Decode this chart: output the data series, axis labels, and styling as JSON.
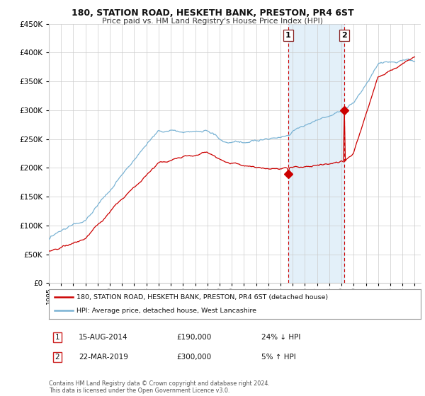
{
  "title": "180, STATION ROAD, HESKETH BANK, PRESTON, PR4 6ST",
  "subtitle": "Price paid vs. HM Land Registry's House Price Index (HPI)",
  "hpi_color": "#7ab3d4",
  "price_color": "#cc0000",
  "dashed_color": "#cc0000",
  "marker1_year": 2014.625,
  "marker1_price": 190000,
  "marker2_year": 2019.22,
  "marker2_price": 300000,
  "legend_line1": "180, STATION ROAD, HESKETH BANK, PRESTON, PR4 6ST (detached house)",
  "legend_line2": "HPI: Average price, detached house, West Lancashire",
  "marker1_date": "15-AUG-2014",
  "marker1_amount": "£190,000",
  "marker1_pct": "24% ↓ HPI",
  "marker2_date": "22-MAR-2019",
  "marker2_amount": "£300,000",
  "marker2_pct": "5% ↑ HPI",
  "footer": "Contains HM Land Registry data © Crown copyright and database right 2024.\nThis data is licensed under the Open Government Licence v3.0.",
  "bg_color": "#ffffff",
  "grid_color": "#cccccc",
  "shade_color": "#cce4f5",
  "ylim": [
    0,
    450000
  ],
  "yticks": [
    0,
    50000,
    100000,
    150000,
    200000,
    250000,
    300000,
    350000,
    400000,
    450000
  ]
}
